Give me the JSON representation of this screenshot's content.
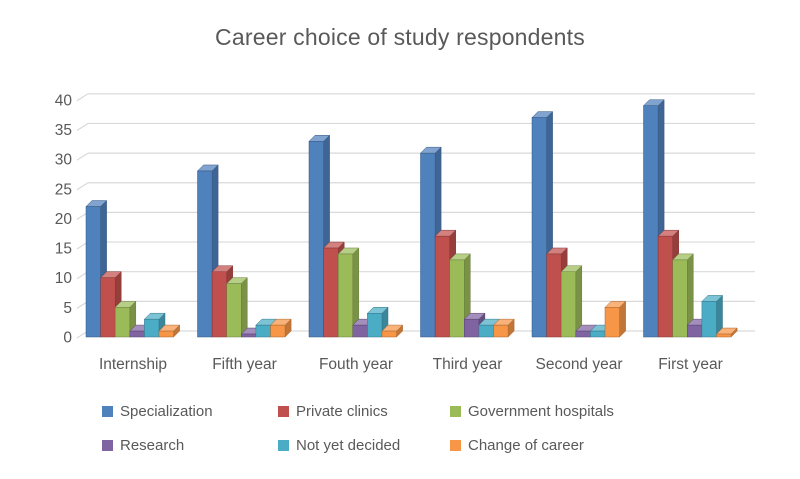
{
  "chart_data": {
    "type": "bar",
    "variant": "3d-clustered-column",
    "title": "Career choice of study respondents",
    "categories": [
      "Internship",
      "Fifth year",
      "Fouth year",
      "Third year",
      "Second year",
      "First year"
    ],
    "series": [
      {
        "name": "Specialization",
        "color": "#4F81BD",
        "values": [
          22,
          28,
          33,
          31,
          37,
          39
        ]
      },
      {
        "name": "Private clinics",
        "color": "#C0504D",
        "values": [
          10,
          11,
          15,
          17,
          14,
          17
        ]
      },
      {
        "name": "Government hospitals",
        "color": "#9BBB59",
        "values": [
          5,
          9,
          14,
          13,
          11,
          13
        ]
      },
      {
        "name": "Research",
        "color": "#8064A2",
        "values": [
          1,
          0.5,
          2,
          3,
          1,
          2
        ]
      },
      {
        "name": "Not yet decided",
        "color": "#4BACC6",
        "values": [
          3,
          2,
          4,
          2,
          1,
          6
        ]
      },
      {
        "name": "Change of career",
        "color": "#F79646",
        "values": [
          1,
          2,
          1,
          2,
          5,
          0.5
        ]
      }
    ],
    "y_axis": {
      "min": 0,
      "max": 40,
      "step": 5,
      "ticks": [
        0,
        5,
        10,
        15,
        20,
        25,
        30,
        35,
        40
      ]
    },
    "xlabel": "",
    "ylabel": "",
    "grid": true,
    "legend_position": "bottom",
    "colors": {
      "text": "#595959",
      "gridline": "#D9D9D9",
      "background": "#FFFFFF"
    }
  }
}
